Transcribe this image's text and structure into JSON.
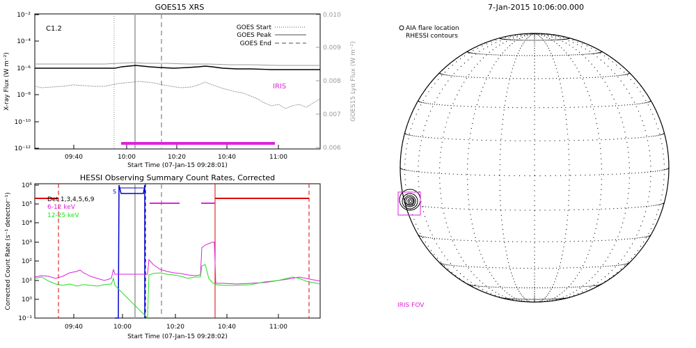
{
  "goes_panel": {
    "title": "GOES15 XRS",
    "class_label": "C1.2",
    "ylabel_left": "X-ray Flux (W m⁻²)",
    "ylabel_right": "GOES15 Lyα Flux (W m⁻²)",
    "xlabel": "Start Time (07-Jan-15 09:28:01)",
    "legend": [
      {
        "label": "GOES Start",
        "style": "dotted"
      },
      {
        "label": "GOES Peak",
        "style": "solid"
      },
      {
        "label": "GOES End",
        "style": "dashed"
      }
    ],
    "iris_label": "IRIS",
    "left_ticks": [
      "10⁻²",
      "10⁻⁴",
      "10⁻⁶",
      "10⁻⁸",
      "10⁻¹⁰",
      "10⁻¹²"
    ],
    "right_ticks": [
      "0.010",
      "0.009",
      "0.008",
      "0.007",
      "0.006"
    ],
    "x_ticks": [
      "09:40",
      "10:00",
      "10:20",
      "10:40",
      "11:00"
    ]
  },
  "hessi_panel": {
    "title": "HESSI Observing Summary Count Rates, Corrected",
    "ylabel": "Corrected Count Rate (s⁻¹ detector⁻¹)",
    "xlabel": "Start Time (07-Jan-15 09:28:02)",
    "legend": [
      {
        "label": "Det 1,3,4,5,6,9",
        "color": "#000000"
      },
      {
        "label": "6-12 keV",
        "color": "#dd22dd"
      },
      {
        "label": "12-25 keV",
        "color": "#22dd22"
      }
    ],
    "s_label": "S",
    "y_ticks": [
      "10⁶",
      "10⁵",
      "10⁴",
      "10³",
      "10²",
      "10¹",
      "10⁰",
      "10⁻¹"
    ],
    "x_ticks": [
      "09:40",
      "10:00",
      "10:20",
      "10:40",
      "11:00"
    ]
  },
  "sun_panel": {
    "title": "7-Jan-2015 10:06:00.000",
    "legend_line1": "AIA flare location",
    "legend_line2": "RHESSI contours",
    "iris_fov_label": "IRIS FOV"
  },
  "colors": {
    "magenta": "#dd22dd",
    "green": "#22dd22",
    "blue": "#0000cc",
    "red": "#dd0000",
    "gray": "#999999"
  },
  "chart_data": [
    {
      "type": "line",
      "title": "GOES15 XRS",
      "xlabel": "Start Time (07-Jan-15 09:28:01)",
      "ylabel": "X-ray Flux (W m⁻²)",
      "y_scale": "log",
      "ylim": [
        1e-12,
        0.01
      ],
      "xlim": [
        "09:28",
        "11:16"
      ],
      "x": [
        "09:28",
        "09:40",
        "09:50",
        "10:00",
        "10:05",
        "10:10",
        "10:20",
        "10:30",
        "10:40",
        "10:50",
        "11:00",
        "11:16"
      ],
      "series": [
        {
          "name": "X-ray long",
          "values": [
            2e-07,
            2e-07,
            2e-07,
            3e-07,
            1e-06,
            1.2e-06,
            8e-07,
            1e-06,
            6e-07,
            5e-07,
            4e-07,
            4e-07
          ]
        },
        {
          "name": "X-ray long (upper gray)",
          "values": [
            1.5e-06,
            1.5e-06,
            1.5e-06,
            1.5e-06,
            1.6e-06,
            1.6e-06,
            1.5e-06,
            1.5e-06,
            1.4e-06,
            1.4e-06,
            1.4e-06,
            1.4e-06
          ]
        },
        {
          "name": "Lyα (dotted)",
          "values": [
            6e-09,
            5e-09,
            6e-09,
            1.2e-08,
            2e-08,
            2.2e-08,
            1.2e-08,
            8e-09,
            2e-08,
            5e-09,
            1e-09,
            8e-10
          ]
        }
      ],
      "markers": {
        "goes_start": "09:59",
        "goes_peak": "10:06",
        "goes_end": "10:17"
      },
      "iris_interval": [
        "10:01",
        "10:55"
      ]
    },
    {
      "type": "line",
      "title": "HESSI Observing Summary Count Rates, Corrected",
      "xlabel": "Start Time (07-Jan-15 09:28:02)",
      "ylabel": "Corrected Count Rate (s⁻¹ detector⁻¹)",
      "y_scale": "log",
      "ylim": [
        0.1,
        1000000.0
      ],
      "xlim": [
        "09:28",
        "11:16"
      ],
      "x": [
        "09:28",
        "09:35",
        "09:45",
        "09:55",
        "09:59",
        "10:10",
        "10:20",
        "10:30",
        "10:33",
        "10:36",
        "10:40",
        "10:50",
        "11:00",
        "11:16"
      ],
      "series": [
        {
          "name": "6-12 keV",
          "values": [
            15,
            12,
            20,
            10,
            15,
            null,
            20,
            15,
            1500,
            null,
            8,
            10,
            20,
            9
          ]
        },
        {
          "name": "12-25 keV",
          "values": [
            12,
            9,
            10,
            6,
            8,
            null,
            18,
            12,
            50,
            null,
            8,
            8,
            15,
            8
          ]
        }
      ],
      "red_lines": [
        "09:37",
        "10:36",
        "11:08"
      ],
      "black_dashed": "10:09"
    }
  ]
}
